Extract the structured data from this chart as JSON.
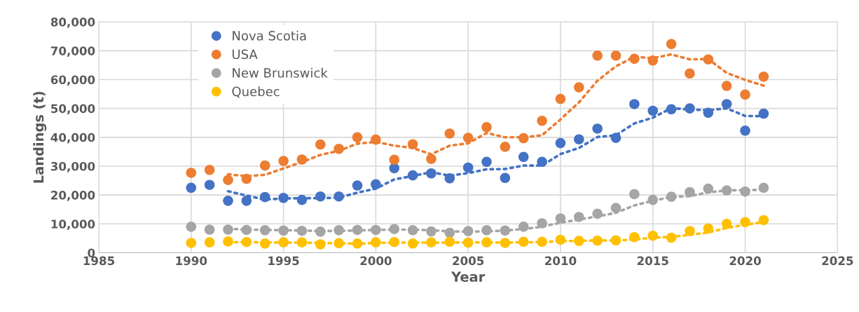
{
  "chart_data": {
    "type": "scatter",
    "xlabel": "Year",
    "ylabel": "Landings (t)",
    "x": [
      1990,
      1991,
      1992,
      1993,
      1994,
      1995,
      1996,
      1997,
      1998,
      1999,
      2000,
      2001,
      2002,
      2003,
      2004,
      2005,
      2006,
      2007,
      2008,
      2009,
      2010,
      2011,
      2012,
      2013,
      2014,
      2015,
      2016,
      2017,
      2018,
      2019,
      2020,
      2021
    ],
    "xlim": [
      1985,
      2025
    ],
    "xticks": [
      1985,
      1990,
      1995,
      2000,
      2005,
      2010,
      2015,
      2020,
      2025
    ],
    "ylim": [
      0,
      80000
    ],
    "yticks": [
      0,
      {
        "value": 10000,
        "label": "10,000"
      },
      {
        "value": 20000,
        "label": "20,000"
      },
      {
        "value": 30000,
        "label": "30,000"
      },
      {
        "value": 40000,
        "label": "40,000"
      },
      {
        "value": 50000,
        "label": "50,000"
      },
      {
        "value": 60000,
        "label": "60,000"
      },
      {
        "value": 70000,
        "label": "70,000"
      },
      {
        "value": 80000,
        "label": "80,000"
      }
    ],
    "grid": true,
    "legend": "top left",
    "marker": "circle",
    "series": [
      {
        "name": "Nova Scotia",
        "color": "#4472c4",
        "values": [
          22500,
          23500,
          18000,
          18000,
          19300,
          19000,
          18300,
          19500,
          19500,
          23300,
          23700,
          29300,
          26800,
          27500,
          25800,
          29500,
          31500,
          25900,
          33200,
          31500,
          38000,
          39300,
          43000,
          39800,
          51500,
          49200,
          49700,
          50000,
          48500,
          51500,
          42300,
          48200
        ]
      },
      {
        "name": "USA",
        "color": "#ed7d31",
        "values": [
          27700,
          28700,
          25200,
          25600,
          30200,
          31800,
          32300,
          37500,
          36000,
          40000,
          39200,
          32200,
          37600,
          32500,
          41300,
          39800,
          43500,
          36700,
          39700,
          45700,
          53300,
          57300,
          68300,
          68300,
          67200,
          66600,
          72300,
          62100,
          67000,
          57800,
          54800,
          61000
        ]
      },
      {
        "name": "New Brunswick",
        "color": "#a5a5a5",
        "values": [
          9000,
          8000,
          8000,
          7900,
          7800,
          7700,
          7600,
          7300,
          7800,
          7900,
          7900,
          8200,
          7800,
          7400,
          6900,
          7500,
          7800,
          7700,
          9000,
          10200,
          11900,
          12400,
          13500,
          15500,
          20300,
          18300,
          19400,
          21000,
          22200,
          21600,
          21200,
          22500
        ]
      },
      {
        "name": "Quebec",
        "color": "#ffc000",
        "values": [
          3400,
          3600,
          3900,
          3700,
          3200,
          3600,
          3600,
          2900,
          3300,
          3200,
          3600,
          3700,
          3200,
          3600,
          3800,
          3500,
          3600,
          3400,
          3800,
          3800,
          4500,
          4100,
          4200,
          4300,
          5400,
          5900,
          5200,
          7500,
          8400,
          10000,
          10600,
          11300
        ]
      },
      {
        "type": "line",
        "line_style": "dotted",
        "marker": "none",
        "color": "#4472c4",
        "x": [
          1992,
          1993,
          1994,
          1995,
          1996,
          1997,
          1998,
          1999,
          2000,
          2001,
          2002,
          2003,
          2004,
          2005,
          2006,
          2007,
          2008,
          2009,
          2010,
          2011,
          2012,
          2013,
          2014,
          2015,
          2016,
          2017,
          2018,
          2019,
          2020,
          2021
        ],
        "values": [
          21300,
          19800,
          18400,
          18800,
          18900,
          18900,
          19100,
          20800,
          22200,
          25400,
          26600,
          27900,
          26700,
          27600,
          28900,
          29000,
          30200,
          30200,
          34200,
          36300,
          40100,
          40700,
          44800,
          46800,
          50100,
          49600,
          49400,
          50000,
          47400,
          47300
        ]
      },
      {
        "type": "line",
        "line_style": "dotted",
        "marker": "none",
        "color": "#ed7d31",
        "x": [
          1992,
          1993,
          1994,
          1995,
          1996,
          1997,
          1998,
          1999,
          2000,
          2001,
          2002,
          2003,
          2004,
          2005,
          2006,
          2007,
          2008,
          2009,
          2010,
          2011,
          2012,
          2013,
          2014,
          2015,
          2016,
          2017,
          2018,
          2019,
          2020,
          2021
        ],
        "values": [
          27200,
          26500,
          27000,
          29200,
          31400,
          33900,
          35300,
          37800,
          38400,
          37100,
          36300,
          34100,
          37100,
          37900,
          41500,
          40000,
          40000,
          40700,
          46200,
          52100,
          59600,
          64600,
          67900,
          67400,
          68700,
          67000,
          67100,
          62300,
          59900,
          57900
        ]
      },
      {
        "type": "line",
        "line_style": "dotted",
        "marker": "none",
        "color": "#a5a5a5",
        "x": [
          1992,
          1993,
          1994,
          1995,
          1996,
          1997,
          1998,
          1999,
          2000,
          2001,
          2002,
          2003,
          2004,
          2005,
          2006,
          2007,
          2008,
          2009,
          2010,
          2011,
          2012,
          2013,
          2014,
          2015,
          2016,
          2017,
          2018,
          2019,
          2020,
          2021
        ],
        "values": [
          8300,
          8000,
          7900,
          7800,
          7700,
          7500,
          7600,
          7700,
          7900,
          8000,
          8000,
          7800,
          7400,
          7300,
          7400,
          7700,
          8200,
          9000,
          10400,
          11500,
          12600,
          13800,
          16400,
          18000,
          19300,
          19600,
          20900,
          21600,
          21700,
          21800
        ]
      },
      {
        "type": "line",
        "line_style": "dotted",
        "marker": "none",
        "color": "#ffc000",
        "x": [
          1992,
          1993,
          1994,
          1995,
          1996,
          1997,
          1998,
          1999,
          2000,
          2001,
          2002,
          2003,
          2004,
          2005,
          2006,
          2007,
          2008,
          2009,
          2010,
          2011,
          2012,
          2013,
          2014,
          2015,
          2016,
          2017,
          2018,
          2019,
          2020,
          2021
        ],
        "values": [
          3600,
          3700,
          3600,
          3500,
          3500,
          3400,
          3300,
          3100,
          3400,
          3500,
          3500,
          3500,
          3500,
          3600,
          3600,
          3500,
          3600,
          3700,
          4000,
          4100,
          4300,
          4200,
          4600,
          5200,
          5500,
          6200,
          7000,
          8600,
          9700,
          10600
        ]
      }
    ]
  }
}
